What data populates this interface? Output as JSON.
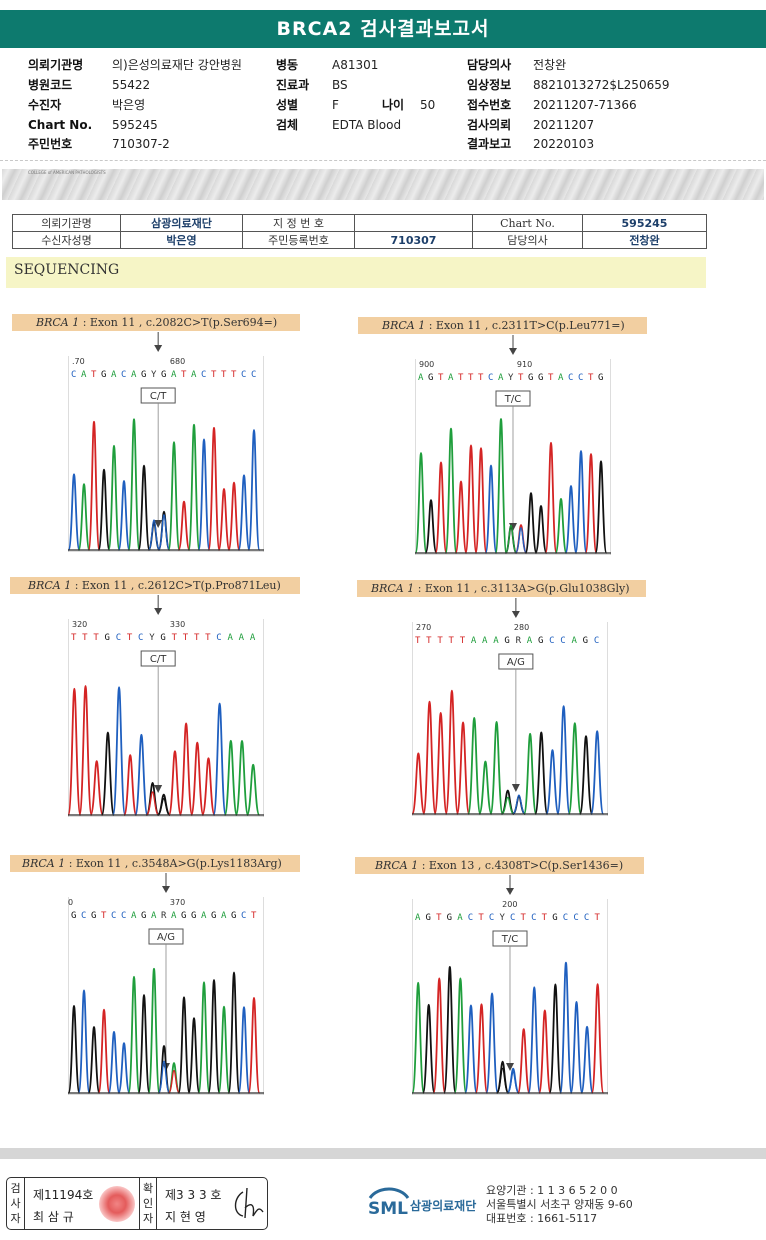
{
  "header": {
    "title": "BRCA2 검사결과보고서"
  },
  "info": {
    "col1": [
      {
        "label": "의뢰기관명",
        "value": "의)은성의료재단 강안병원"
      },
      {
        "label": "병원코드",
        "value": "55422"
      },
      {
        "label": "수진자",
        "value": "박은영"
      },
      {
        "label": "Chart No.",
        "value": "595245"
      },
      {
        "label": "주민번호",
        "value": "710307-2"
      }
    ],
    "col2": [
      {
        "label": "병동",
        "value": "A81301"
      },
      {
        "label": "진료과",
        "value": "BS"
      },
      {
        "label": "성별",
        "value": "F",
        "label2": "나이",
        "value2": "50"
      },
      {
        "label": "검체",
        "value": "EDTA Blood"
      }
    ],
    "col3": [
      {
        "label": "담당의사",
        "value": "전창완"
      },
      {
        "label": "임상정보",
        "value": "8821013272$L250659"
      },
      {
        "label": "접수번호",
        "value": "20211207-71366"
      },
      {
        "label": "검사의뢰",
        "value": "20211207"
      },
      {
        "label": "결과보고",
        "value": "20220103"
      }
    ]
  },
  "band_text": "COLLEGE of AMERICAN PATHOLOGISTS",
  "sub_table": {
    "req_org_label": "의뢰기관명",
    "req_org_value": "삼광의료재단",
    "designated_label": "지 정 번 호",
    "chart_label": "Chart No.",
    "chart_value": "595245",
    "recipient_label": "수신자성명",
    "recipient_value": "박은영",
    "rrn_label": "주민등록번호",
    "rrn_value": "710307",
    "doctor_label": "담당의사",
    "doctor_value": "전창완"
  },
  "section": {
    "title": "SEQUENCING"
  },
  "variants": [
    {
      "gene": "BRCA 1",
      "desc": " : Exon 11 , c.2082C>T(p.Ser694=)",
      "ticks": [
        ".70",
        "680"
      ],
      "seq": "CATGACAGYGATACTTTCC",
      "call": "C/T"
    },
    {
      "gene": "BRCA 1",
      "desc": " : Exon 11 , c.2311T>C(p.Leu771=)",
      "ticks": [
        "900",
        "910"
      ],
      "seq": "AGTATTTCAYTGGTACCTG",
      "call": "T/C"
    },
    {
      "gene": "BRCA 1",
      "desc": " : Exon 11 , c.2612C>T(p.Pro871Leu)",
      "ticks": [
        "320",
        "330"
      ],
      "seq": "TTTGCTCYGTTTTCAAA",
      "call": "C/T"
    },
    {
      "gene": "BRCA 1",
      "desc": " : Exon 11 , c.3113A>G(p.Glu1038Gly)",
      "ticks": [
        "270",
        "280"
      ],
      "seq": "TTTTTAAAGRAGCCAGC",
      "call": "A/G"
    },
    {
      "gene": "BRCA 1",
      "desc": " : Exon 11 , c.3548A>G(p.Lys1183Arg)",
      "ticks": [
        "0",
        "370"
      ],
      "seq": "GCGTCCAGARAGGAGAGCT",
      "call": "A/G"
    },
    {
      "gene": "BRCA 1",
      "desc": " : Exon 13 , c.4308T>C(p.Ser1436=)",
      "ticks": [
        "200"
      ],
      "seq": "AGTGACTCYCTCTGCCCT",
      "call": "T/C"
    }
  ],
  "footer": {
    "inspector_label": "검사자",
    "inspector_no": "제11194호",
    "inspector_name": "최 삼 규",
    "confirmer_label": "확인자",
    "confirmer_no": "제3 3 3 호",
    "confirmer_name": "지 현 영",
    "logo_text": "SML",
    "org_name": "삼광의료재단",
    "care_no": "요양기관 : 1 1 3 6 5 2 0 0",
    "address": "서울특별시 서초구 양재동 9-60",
    "phone": "대표번호 : 1661-5117"
  },
  "colors": {
    "header": "#0d7a6e",
    "label_strip": "#f2cfa1",
    "seq_band": "#f6f5c6",
    "A": "#1f9e3c",
    "C": "#1f5fbf",
    "G": "#111111",
    "T": "#d42424"
  }
}
